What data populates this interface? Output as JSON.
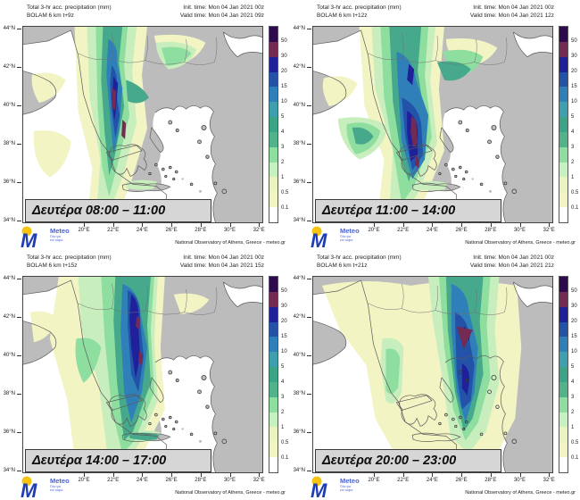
{
  "attribution": "National Observatory of Athens, Greece - meteo.gr",
  "logo": {
    "name": "Meteo",
    "tagline_line1": "Όλα για",
    "tagline_line2": "τον καιρό",
    "dot_color": "#f6c40f",
    "m_color": "#1e3db5",
    "text_color": "#4a63d8"
  },
  "colorbar": {
    "unit": "mm",
    "labels": [
      "50",
      "30",
      "20",
      "15",
      "10",
      "5",
      "4",
      "3",
      "2",
      "1",
      "0.5",
      "0.1"
    ],
    "colors": [
      "#2e0a4f",
      "#742a52",
      "#20209a",
      "#2253a8",
      "#2f7fb8",
      "#3f9fae",
      "#3aa487",
      "#51b389",
      "#8edea0",
      "#c6f1c1",
      "#ebf4c0",
      "#f2f4c3",
      "#ffffff"
    ]
  },
  "map_axes": {
    "lat_labels": [
      "44°N",
      "42°N",
      "40°N",
      "38°N",
      "36°N",
      "34°N"
    ],
    "lon_labels": [
      "20°E",
      "22°E",
      "24°E",
      "26°E",
      "28°E",
      "30°E",
      "32°E"
    ]
  },
  "map_colors": {
    "land": "#bcbcbc",
    "sea": "#ffffff",
    "coastline": "#5a5a5a"
  },
  "panels": [
    {
      "title_line1": "Total 3-hr acc. precipitation (mm)",
      "title_line2": "BOLAM 6 km t+9z",
      "init_time": "Init. time: Mon 04 Jan 2021 00z",
      "valid_time": "Valid time: Mon 04 Jan 2021 09z",
      "time_label": "Δευτέρα 08:00 – 11:00"
    },
    {
      "title_line1": "Total 3-hr acc. precipitation (mm)",
      "title_line2": "BOLAM 6 km t+12z",
      "init_time": "Init. time: Mon 04 Jan 2021 00z",
      "valid_time": "Valid time: Mon 04 Jan 2021 12z",
      "time_label": "Δευτέρα 11:00 – 14:00"
    },
    {
      "title_line1": "Total 3-hr acc. precipitation (mm)",
      "title_line2": "BOLAM 6 km t+15z",
      "init_time": "Init. time: Mon 04 Jan 2021 00z",
      "valid_time": "Valid time: Mon 04 Jan 2021 15z",
      "time_label": "Δευτέρα 14:00 – 17:00"
    },
    {
      "title_line1": "Total 3-hr acc. precipitation (mm)",
      "title_line2": "BOLAM 6 km t+21z",
      "init_time": "Init. time: Mon 04 Jan 2021 00z",
      "valid_time": "Valid time: Mon 04 Jan 2021 21z",
      "time_label": "Δευτέρα 20:00 – 23:00"
    }
  ]
}
